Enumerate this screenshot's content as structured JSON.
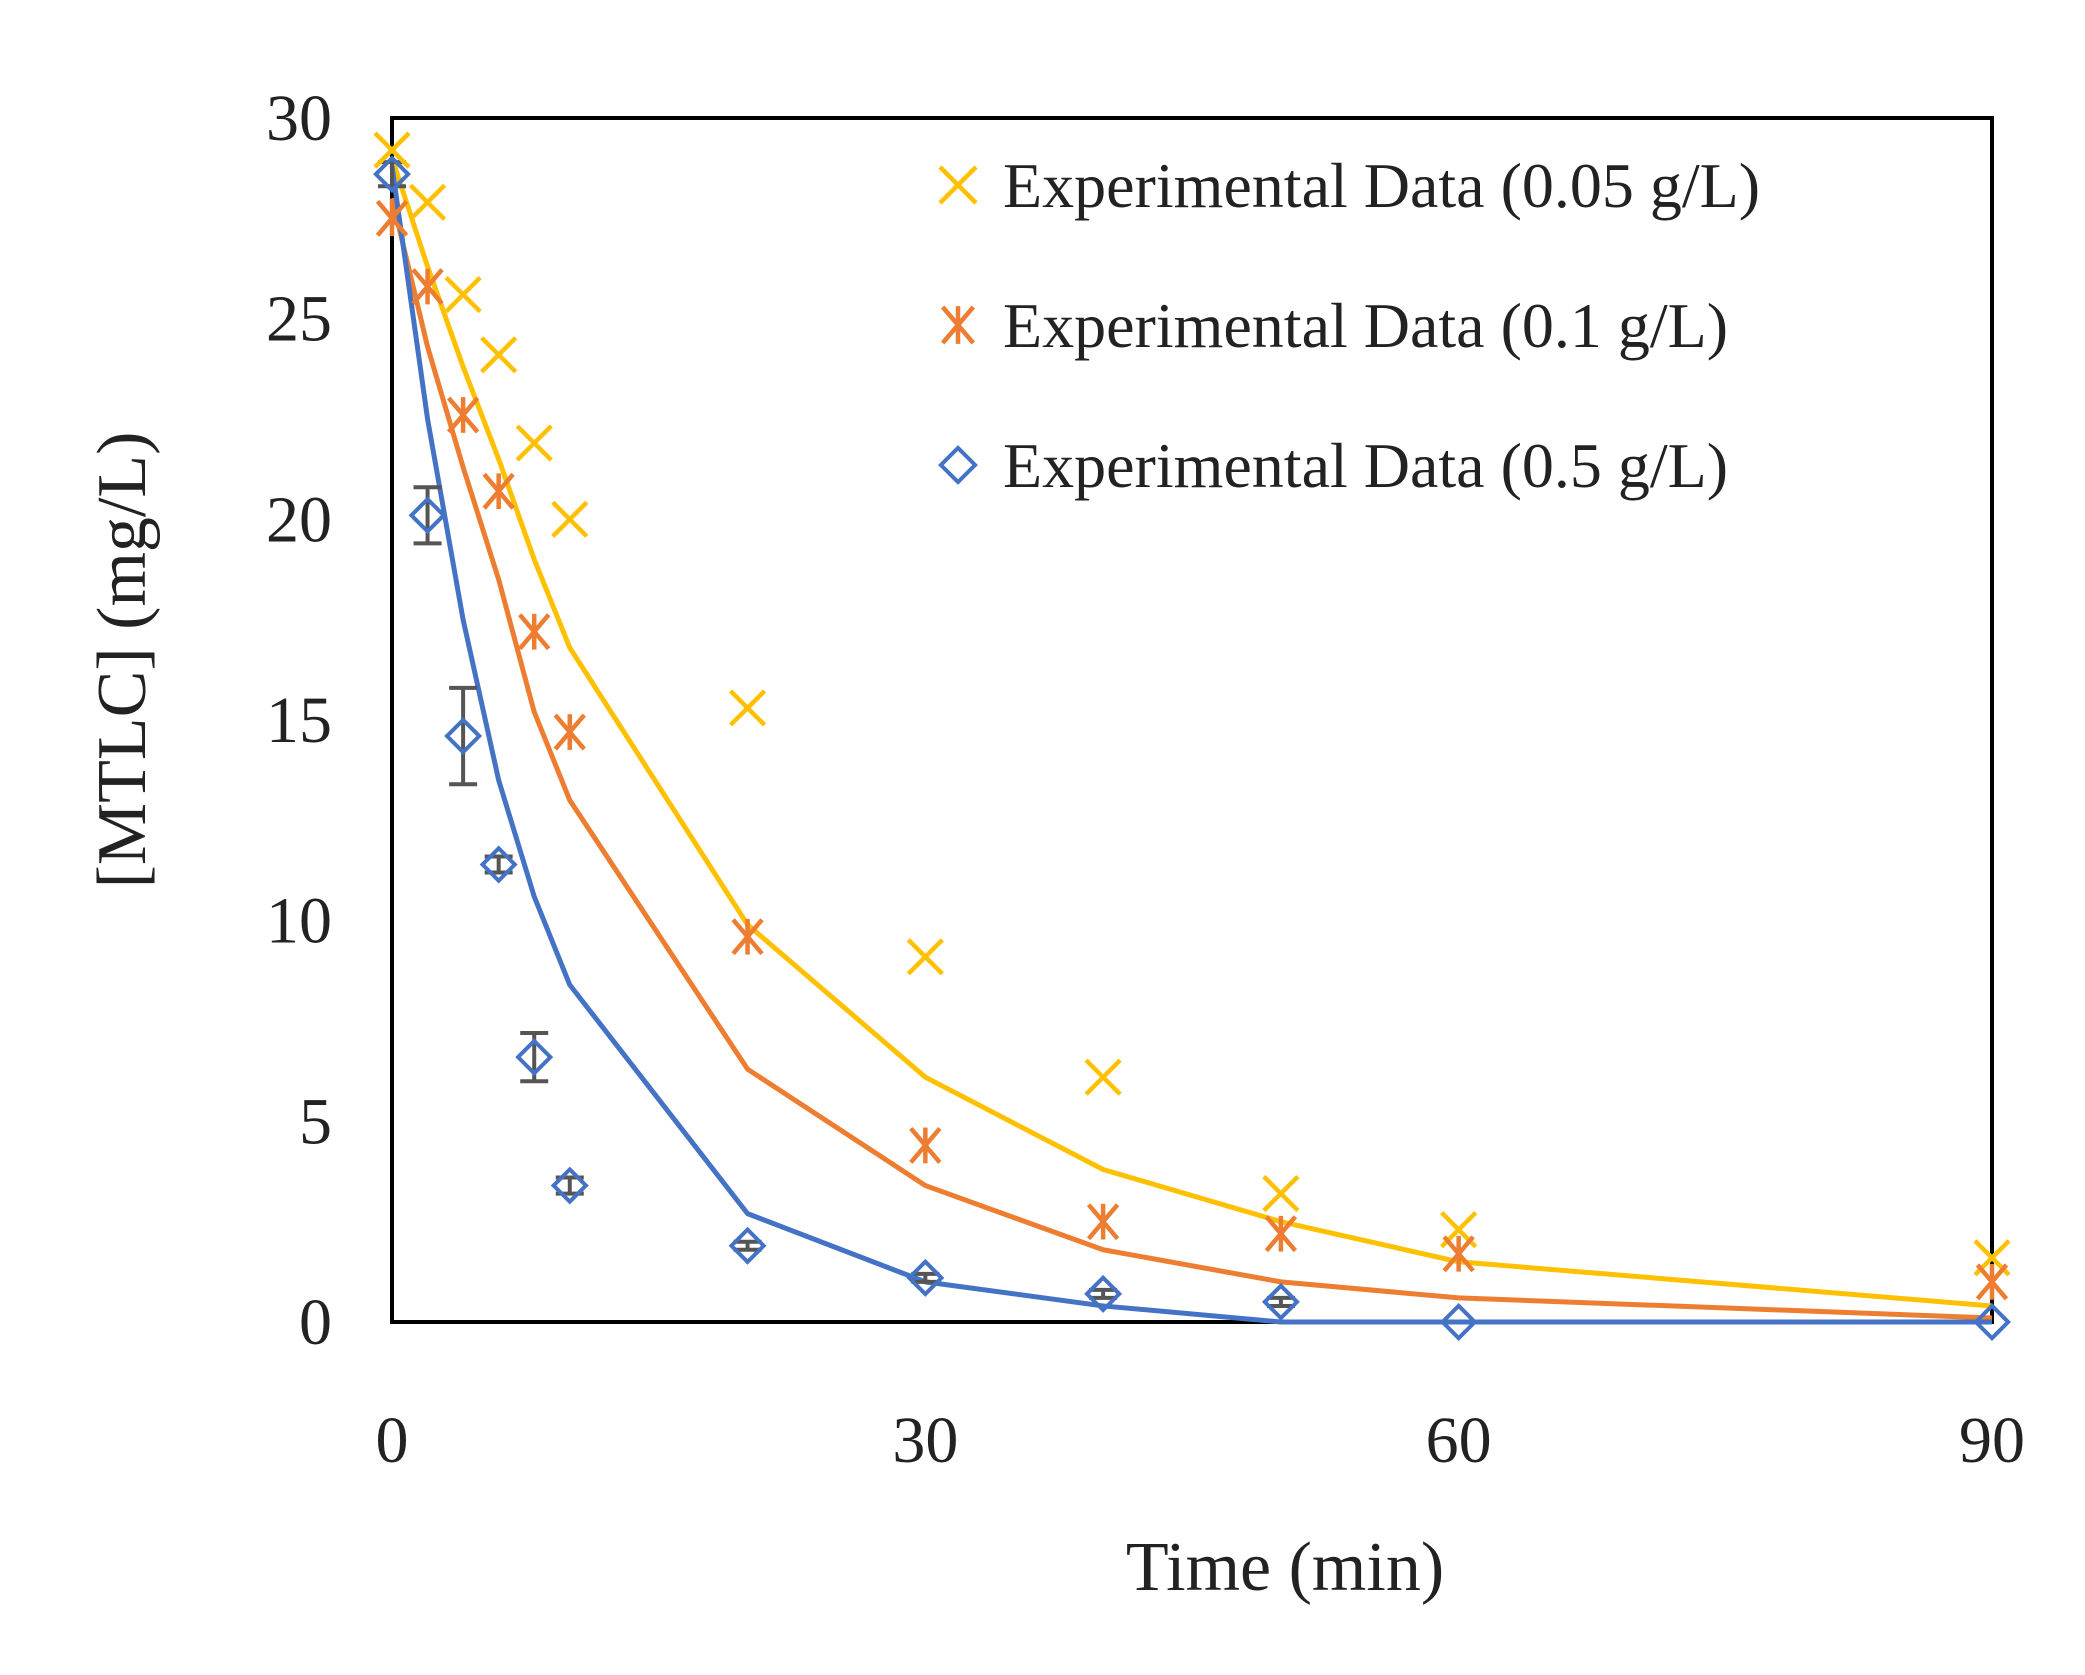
{
  "chart_data": {
    "type": "scatter",
    "title": "",
    "xlabel": "Time (min)",
    "ylabel": "[MTLC] (mg/L)",
    "xlim": [
      0,
      90
    ],
    "ylim": [
      0,
      30
    ],
    "xticks": [
      0,
      30,
      60,
      90
    ],
    "yticks": [
      0,
      5,
      10,
      15,
      20,
      25,
      30
    ],
    "grid": false,
    "legend_position": "top-right",
    "series": [
      {
        "name": "Experimental Data (0.05 g/L)",
        "marker": "x",
        "color": "#FFC000",
        "x": [
          0,
          2,
          4,
          6,
          8,
          10,
          20,
          30,
          40,
          50,
          60,
          90
        ],
        "y": [
          29.2,
          27.9,
          25.6,
          24.1,
          21.9,
          20.0,
          15.3,
          9.1,
          6.1,
          3.2,
          2.3,
          1.6
        ],
        "fit": {
          "x": [
            0,
            2,
            4,
            6,
            8,
            10,
            20,
            30,
            40,
            50,
            60,
            90
          ],
          "y": [
            29.0,
            26.3,
            23.8,
            21.5,
            19.0,
            16.8,
            9.9,
            6.1,
            3.8,
            2.5,
            1.5,
            0.4
          ]
        }
      },
      {
        "name": "Experimental Data (0.1 g/L)",
        "marker": "asterisk",
        "color": "#ED7D31",
        "x": [
          0,
          2,
          4,
          6,
          8,
          10,
          20,
          30,
          40,
          50,
          60,
          90
        ],
        "y": [
          27.5,
          25.8,
          22.6,
          20.7,
          17.2,
          14.7,
          9.6,
          4.4,
          2.5,
          2.2,
          1.7,
          1.0
        ],
        "fit": {
          "x": [
            0,
            2,
            4,
            6,
            8,
            10,
            20,
            30,
            40,
            50,
            60,
            90
          ],
          "y": [
            28.0,
            24.3,
            21.3,
            18.5,
            15.2,
            13.0,
            6.3,
            3.4,
            1.8,
            1.0,
            0.6,
            0.1
          ]
        }
      },
      {
        "name": "Experimental Data (0.5 g/L)",
        "marker": "diamond",
        "color": "#4472C4",
        "x": [
          0,
          2,
          4,
          6,
          8,
          10,
          20,
          30,
          40,
          50,
          60,
          90
        ],
        "y": [
          28.6,
          20.1,
          14.6,
          11.4,
          6.6,
          3.4,
          1.9,
          1.1,
          0.7,
          0.5,
          0.0,
          0.0
        ],
        "error": [
          0.3,
          0.7,
          1.2,
          0.2,
          0.6,
          0.2,
          0.1,
          0.1,
          0.1,
          0.1,
          0.0,
          0.0
        ],
        "fit": {
          "x": [
            0,
            2,
            4,
            6,
            8,
            10,
            20,
            30,
            40,
            50,
            60,
            90
          ],
          "y": [
            28.8,
            22.5,
            17.5,
            13.5,
            10.6,
            8.4,
            2.7,
            1.0,
            0.4,
            0.0,
            0.0,
            0.0
          ]
        }
      }
    ]
  }
}
